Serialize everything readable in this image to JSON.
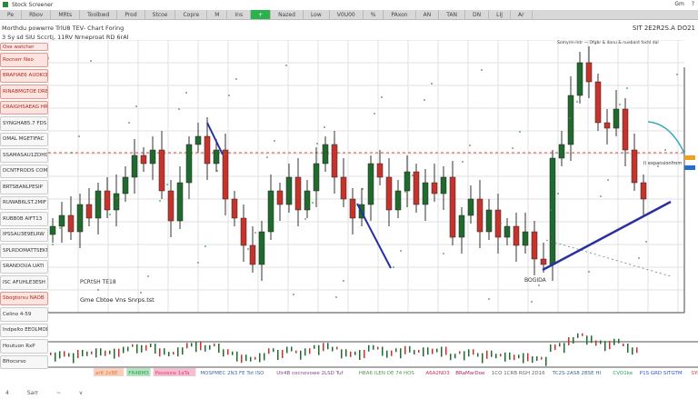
{
  "window": {
    "title": "Stock Screener",
    "controls": [
      "Gm",
      "?"
    ]
  },
  "toolbar": {
    "items": [
      {
        "label": "Pe"
      },
      {
        "label": "Rbov"
      },
      {
        "label": "MRts"
      },
      {
        "label": "Toolbwd"
      },
      {
        "label": "Prod"
      },
      {
        "label": "Stcoe"
      },
      {
        "label": "Copre"
      },
      {
        "label": "M"
      },
      {
        "label": "Ins"
      },
      {
        "label": "+"
      },
      {
        "label": "Nazed"
      },
      {
        "label": "Low"
      },
      {
        "label": "V0U00"
      },
      {
        "label": "%"
      },
      {
        "label": "PAxon"
      },
      {
        "label": "AN"
      },
      {
        "label": "TAN"
      },
      {
        "label": "DN"
      },
      {
        "label": "LIJ"
      },
      {
        "label": "Ar"
      }
    ],
    "active_index": 9
  },
  "subheader": {
    "line1": "Morthdu powwrre TrlU8 TEV- Chart   Foring",
    "line2": "3   Sy   sd  SIU Sccrtj, 11RV  Nrneproat RD 6rAl",
    "right": "SIT 2E2R2S.A  DO21"
  },
  "sidebar": {
    "header": "Ose watcher",
    "items": [
      {
        "label": "Rocnerr Neo",
        "style": "red"
      },
      {
        "label": "BRAPIAE6 AUOKI3",
        "style": "red"
      },
      {
        "label": "RINABMGTOE DRE",
        "style": "red"
      },
      {
        "label": "CRAIGHSAEAG HRI",
        "style": "red"
      },
      {
        "label": "SYNGHAB5.7 FDS",
        "style": "plain"
      },
      {
        "label": "OMAL MGETIFAC",
        "style": "plain"
      },
      {
        "label": "SSAMASAU1ZDHD",
        "style": "plain"
      },
      {
        "label": "DCNTFRODS COMPI",
        "style": "plain"
      },
      {
        "label": "BRTSBANLPESIP",
        "style": "plain"
      },
      {
        "label": "RUWAB6LST.2MIF",
        "style": "plain"
      },
      {
        "label": "RUBB0B AIFT13",
        "style": "plain"
      },
      {
        "label": "IPSSAU3E9ELRW",
        "style": "plain"
      },
      {
        "label": "SPLRDOMATTSEKN",
        "style": "plain"
      },
      {
        "label": "SRANDOUA.UATI",
        "style": "plain"
      },
      {
        "label": "ISC AFUHLE3ESH",
        "style": "plain"
      },
      {
        "label": "Sbogtorsu NAOB",
        "style": "red"
      },
      {
        "label": "Celino 4-59",
        "style": "plain"
      },
      {
        "label": "Indpelto EEOLMOE",
        "style": "plain"
      },
      {
        "label": "Houtuon   RxP",
        "style": "plain"
      },
      {
        "label": "Bftocsrso",
        "style": "plain"
      }
    ]
  },
  "chart_labels": {
    "legend": "Somyrm-lntr — Ofgbr & donu & nuebant fochl dal",
    "label_left": "PCRtSH     TE18",
    "label_caption": "Gme Cbtoe  Vns Snrps.tst",
    "label_low": "BOGIDA",
    "label_right": "I) expansionfrom"
  },
  "ticker": {
    "items": [
      {
        "text": "ar6 2cBE",
        "color": "#e8753a"
      },
      {
        "text": "FR4BM3",
        "color": "#2ba84a"
      },
      {
        "text": "Pasoesw 1aTa",
        "color": "#e0447a"
      },
      {
        "text": "MOSPMEC 2N3 FE Tot ISO",
        "color": "#4466aa"
      },
      {
        "text": "Ulr4B cocnovowe 2LSD Tuf",
        "color": "#884488"
      },
      {
        "text": "HBA6 ILEN DE 74 HOS",
        "color": "#559955"
      },
      {
        "text": "A6A2ND3",
        "color": "#cc3355"
      },
      {
        "text": "BRaMarDoe",
        "color": "#aa2266"
      },
      {
        "text": "1CO 1CRB RGH 2D16",
        "color": "#666666"
      },
      {
        "text": "TC2S-2AS8 2BSE HI",
        "color": "#446688"
      },
      {
        "text": "CVO1ke",
        "color": "#22aa55"
      },
      {
        "text": "P1S GRD SITGTM",
        "color": "#3355cc"
      },
      {
        "text": "SYNMR",
        "color": "#dd3333"
      }
    ]
  },
  "footer": {
    "items": [
      "4",
      "Sarr",
      "~",
      "v"
    ]
  },
  "colors": {
    "up": "#1f6b2e",
    "down": "#c8322a",
    "trend": "#2830a0",
    "teal": "#39a8c0",
    "grid": "#e2e2e2"
  },
  "chart_data": {
    "type": "candlestick",
    "closes": [
      32,
      36,
      30,
      40,
      35,
      45,
      38,
      44,
      50,
      58,
      55,
      60,
      45,
      34,
      48,
      62,
      65,
      55,
      60,
      42,
      35,
      25,
      18,
      30,
      45,
      40,
      50,
      38,
      45,
      55,
      62,
      50,
      42,
      35,
      40,
      55,
      50,
      38,
      45,
      52,
      40,
      48,
      44,
      50,
      28,
      36,
      42,
      30,
      38,
      28,
      32,
      25,
      30,
      20,
      18,
      57,
      62,
      80,
      92,
      85,
      70,
      68,
      75,
      60,
      48,
      42
    ],
    "ylim": [
      0,
      100
    ],
    "grid": true
  }
}
